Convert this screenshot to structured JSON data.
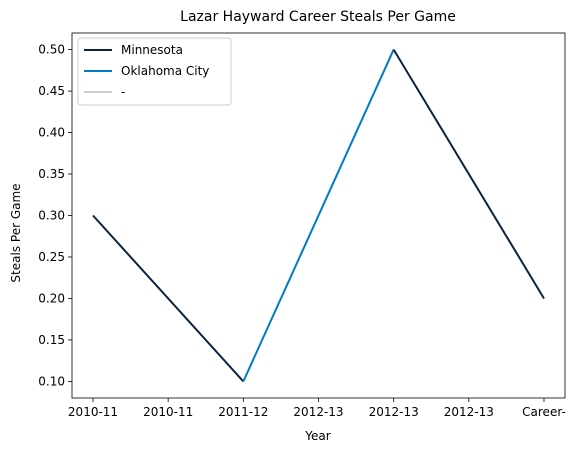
{
  "chart_data": {
    "type": "line",
    "title": "Lazar Hayward Career Steals Per Game",
    "xlabel": "Year",
    "ylabel": "Steals Per Game",
    "categories": [
      "2010-11",
      "2010-11",
      "2011-12",
      "2012-13",
      "2012-13",
      "2012-13",
      "Career-"
    ],
    "ylim": [
      0.08,
      0.52
    ],
    "yticks": [
      0.1,
      0.15,
      0.2,
      0.25,
      0.3,
      0.35,
      0.4,
      0.45,
      0.5
    ],
    "grid": false,
    "legend_position": "top-left",
    "series": [
      {
        "name": "Minnesota",
        "color": "#0c2340",
        "points": [
          [
            0,
            0.3
          ],
          [
            2,
            0.1
          ]
        ]
      },
      {
        "name": "Oklahoma City",
        "color": "#007ac1",
        "points": [
          [
            2,
            0.1
          ],
          [
            4,
            0.5
          ]
        ]
      },
      {
        "name": "-",
        "color": "#c4ced4",
        "points": []
      },
      {
        "name": "",
        "color": "#0c2340",
        "points": [
          [
            4,
            0.5
          ],
          [
            6,
            0.2
          ]
        ]
      }
    ]
  }
}
